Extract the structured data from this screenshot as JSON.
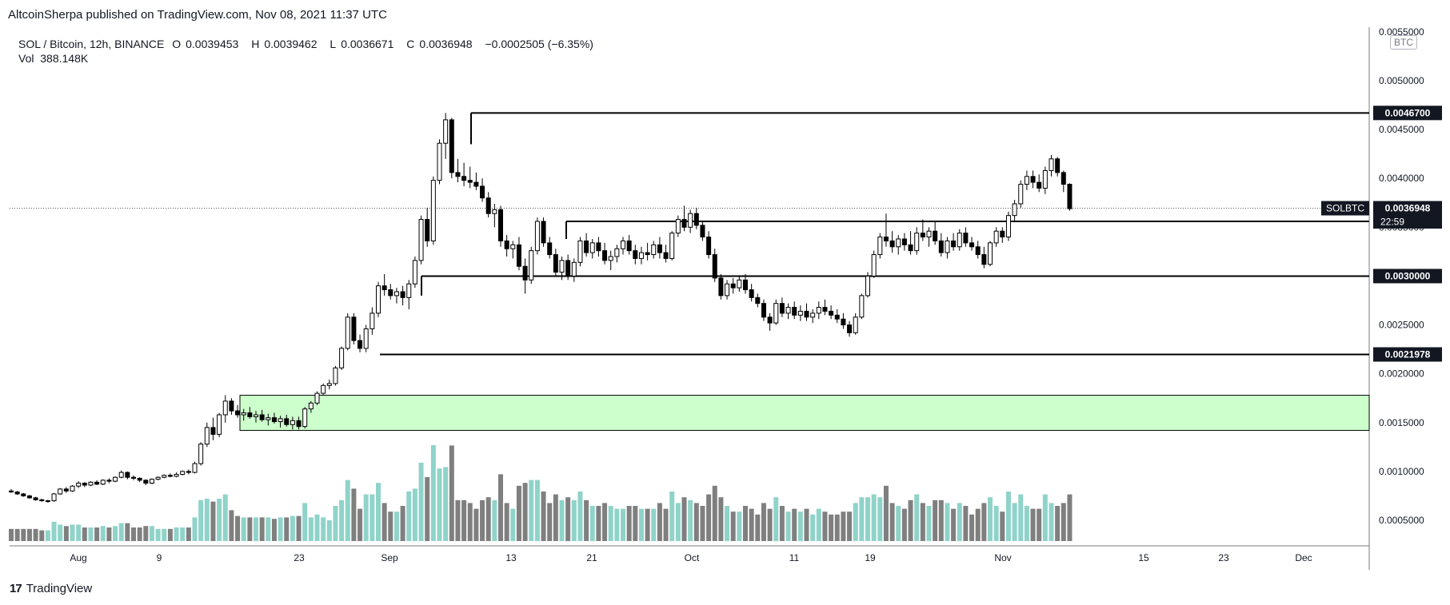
{
  "attribution": "AltcoinSherpa published on TradingView.com, Nov 08, 2021 11:37 UTC",
  "legend": {
    "symbol": "SOL / Bitcoin, 12h, BINANCE",
    "open_label": "O",
    "open": "0.0039453",
    "high_label": "H",
    "high": "0.0039462",
    "low_label": "L",
    "low": "0.0036671",
    "close_label": "C",
    "close": "0.0036948",
    "change": "−0.0002505 (−6.35%)",
    "vol_label": "Vol",
    "vol": "388.148K"
  },
  "footer": {
    "brand": "TradingView"
  },
  "colors": {
    "up": "#ffffff",
    "down": "#000000",
    "vol_up": "#8fd3c9",
    "vol_down": "#7f7f7f",
    "zone": "#ccffcc",
    "tag": "#131722"
  },
  "chart_data": {
    "type": "candlestick",
    "pair": "SOLBTC",
    "currency": "BTC",
    "y_ticks": [
      "0.0055000",
      "0.0050000",
      "0.0045000",
      "0.0040000",
      "0.0035000",
      "0.0030000",
      "0.0025000",
      "0.0020000",
      "0.0015000",
      "0.0010000",
      "0.0005000"
    ],
    "x_ticks": [
      "Aug",
      "9",
      "23",
      "Sep",
      "13",
      "21",
      "Oct",
      "11",
      "19",
      "Nov",
      "15",
      "23",
      "Dec"
    ],
    "last_price": "0.0036948",
    "countdown": "22:59",
    "levels": [
      "0.0046700",
      "0.0035598",
      "0.0030000",
      "0.0021978"
    ],
    "demand_zone": [
      0.00142,
      0.00178
    ],
    "candles_12h": [
      [
        0.0008,
        0.00082,
        0.00078,
        0.00079
      ],
      [
        0.00079,
        0.0008,
        0.00076,
        0.00077
      ],
      [
        0.00077,
        0.00078,
        0.00074,
        0.00075
      ],
      [
        0.00075,
        0.00076,
        0.00072,
        0.00073
      ],
      [
        0.00073,
        0.00074,
        0.0007,
        0.00071
      ],
      [
        0.00071,
        0.00072,
        0.00069,
        0.0007
      ],
      [
        0.0007,
        0.00071,
        0.00068,
        0.0007
      ],
      [
        0.0007,
        0.00078,
        0.00069,
        0.00077
      ],
      [
        0.00077,
        0.00083,
        0.00076,
        0.00082
      ],
      [
        0.00082,
        0.00084,
        0.00078,
        0.0008
      ],
      [
        0.0008,
        0.00086,
        0.00079,
        0.00085
      ],
      [
        0.00085,
        0.0009,
        0.00083,
        0.00088
      ],
      [
        0.00088,
        0.00089,
        0.00084,
        0.00086
      ],
      [
        0.00086,
        0.0009,
        0.00085,
        0.00089
      ],
      [
        0.00089,
        0.00091,
        0.00086,
        0.00087
      ],
      [
        0.00087,
        0.00092,
        0.00086,
        0.00091
      ],
      [
        0.00091,
        0.00093,
        0.00088,
        0.0009
      ],
      [
        0.0009,
        0.00095,
        0.00089,
        0.00094
      ],
      [
        0.00094,
        0.00101,
        0.00093,
        0.00099
      ],
      [
        0.00099,
        0.001,
        0.00092,
        0.00094
      ],
      [
        0.00094,
        0.00096,
        0.00091,
        0.00093
      ],
      [
        0.00093,
        0.00094,
        0.00089,
        0.00091
      ],
      [
        0.00091,
        0.00092,
        0.00086,
        0.00088
      ],
      [
        0.00088,
        0.00093,
        0.00087,
        0.00092
      ],
      [
        0.00092,
        0.00095,
        0.00091,
        0.00094
      ],
      [
        0.00094,
        0.00097,
        0.00093,
        0.00096
      ],
      [
        0.00096,
        0.00098,
        0.00094,
        0.00095
      ],
      [
        0.00095,
        0.00099,
        0.00094,
        0.00097
      ],
      [
        0.00097,
        0.00101,
        0.00096,
        0.001
      ],
      [
        0.001,
        0.00102,
        0.00097,
        0.00099
      ],
      [
        0.00099,
        0.0011,
        0.00098,
        0.00108
      ],
      [
        0.00108,
        0.0013,
        0.00106,
        0.00128
      ],
      [
        0.00128,
        0.0015,
        0.00125,
        0.00145
      ],
      [
        0.00145,
        0.00155,
        0.00132,
        0.00138
      ],
      [
        0.00138,
        0.0016,
        0.00135,
        0.00158
      ],
      [
        0.00158,
        0.00178,
        0.0015,
        0.00172
      ],
      [
        0.00172,
        0.00175,
        0.00158,
        0.00162
      ],
      [
        0.00162,
        0.00168,
        0.00155,
        0.00158
      ],
      [
        0.00158,
        0.00164,
        0.00152,
        0.0016
      ],
      [
        0.0016,
        0.00166,
        0.00154,
        0.00156
      ],
      [
        0.00156,
        0.00162,
        0.0015,
        0.00158
      ],
      [
        0.00158,
        0.00163,
        0.00151,
        0.00153
      ],
      [
        0.00153,
        0.00159,
        0.00147,
        0.00155
      ],
      [
        0.00155,
        0.0016,
        0.00149,
        0.00151
      ],
      [
        0.00151,
        0.00157,
        0.00145,
        0.00154
      ],
      [
        0.00154,
        0.00158,
        0.00146,
        0.00148
      ],
      [
        0.00148,
        0.00156,
        0.00143,
        0.00152
      ],
      [
        0.00152,
        0.00156,
        0.00143,
        0.00146
      ],
      [
        0.00146,
        0.00166,
        0.00144,
        0.00164
      ],
      [
        0.00164,
        0.00172,
        0.0016,
        0.0017
      ],
      [
        0.0017,
        0.00182,
        0.00168,
        0.0018
      ],
      [
        0.0018,
        0.0019,
        0.00178,
        0.00188
      ],
      [
        0.00188,
        0.00194,
        0.00184,
        0.0019
      ],
      [
        0.0019,
        0.00208,
        0.00188,
        0.00206
      ],
      [
        0.00206,
        0.00228,
        0.00204,
        0.00226
      ],
      [
        0.00226,
        0.00262,
        0.00224,
        0.00258
      ],
      [
        0.00258,
        0.00262,
        0.0023,
        0.00234
      ],
      [
        0.00234,
        0.0024,
        0.00222,
        0.00226
      ],
      [
        0.00226,
        0.0025,
        0.00222,
        0.00246
      ],
      [
        0.00246,
        0.00268,
        0.0024,
        0.00262
      ],
      [
        0.00262,
        0.00294,
        0.00258,
        0.0029
      ],
      [
        0.0029,
        0.00302,
        0.0028,
        0.00286
      ],
      [
        0.00286,
        0.00292,
        0.00276,
        0.0028
      ],
      [
        0.0028,
        0.00288,
        0.00272,
        0.00284
      ],
      [
        0.00284,
        0.0029,
        0.0027,
        0.00278
      ],
      [
        0.00278,
        0.00296,
        0.00266,
        0.00292
      ],
      [
        0.00292,
        0.0032,
        0.00288,
        0.00316
      ],
      [
        0.00316,
        0.00362,
        0.00312,
        0.00358
      ],
      [
        0.00358,
        0.0037,
        0.0033,
        0.00336
      ],
      [
        0.00336,
        0.00402,
        0.00332,
        0.00398
      ],
      [
        0.00398,
        0.0044,
        0.00394,
        0.00436
      ],
      [
        0.00436,
        0.00467,
        0.0042,
        0.0046
      ],
      [
        0.0046,
        0.00462,
        0.004,
        0.00406
      ],
      [
        0.00406,
        0.0042,
        0.00396,
        0.00402
      ],
      [
        0.00402,
        0.00416,
        0.00392,
        0.00398
      ],
      [
        0.00398,
        0.00412,
        0.0039,
        0.00396
      ],
      [
        0.00396,
        0.00406,
        0.00388,
        0.00392
      ],
      [
        0.00392,
        0.004,
        0.00376,
        0.0038
      ],
      [
        0.0038,
        0.00386,
        0.0036,
        0.00364
      ],
      [
        0.00364,
        0.00374,
        0.0035,
        0.00368
      ],
      [
        0.00368,
        0.00372,
        0.0033,
        0.00336
      ],
      [
        0.00336,
        0.00342,
        0.0032,
        0.00328
      ],
      [
        0.00328,
        0.00336,
        0.00318,
        0.00332
      ],
      [
        0.00332,
        0.0034,
        0.00306,
        0.0031
      ],
      [
        0.0031,
        0.00318,
        0.00282,
        0.00296
      ],
      [
        0.00296,
        0.0033,
        0.00292,
        0.00326
      ],
      [
        0.00326,
        0.0036,
        0.00322,
        0.00356
      ],
      [
        0.00356,
        0.0036,
        0.0033,
        0.00334
      ],
      [
        0.00334,
        0.0034,
        0.00318,
        0.00322
      ],
      [
        0.00322,
        0.00328,
        0.003,
        0.00304
      ],
      [
        0.00304,
        0.0032,
        0.00296,
        0.00316
      ],
      [
        0.00316,
        0.00322,
        0.00296,
        0.003
      ],
      [
        0.003,
        0.00318,
        0.00294,
        0.00314
      ],
      [
        0.00314,
        0.0034,
        0.0031,
        0.00336
      ],
      [
        0.00336,
        0.00344,
        0.0032,
        0.00324
      ],
      [
        0.00324,
        0.00338,
        0.00318,
        0.00334
      ],
      [
        0.00334,
        0.0034,
        0.0032,
        0.00326
      ],
      [
        0.00326,
        0.00334,
        0.00312,
        0.00316
      ],
      [
        0.00316,
        0.00326,
        0.00306,
        0.0032
      ],
      [
        0.0032,
        0.00332,
        0.00314,
        0.00328
      ],
      [
        0.00328,
        0.0034,
        0.00322,
        0.00336
      ],
      [
        0.00336,
        0.00342,
        0.00322,
        0.00326
      ],
      [
        0.00326,
        0.00332,
        0.00312,
        0.00318
      ],
      [
        0.00318,
        0.0033,
        0.00312,
        0.00324
      ],
      [
        0.00324,
        0.00334,
        0.00316,
        0.00322
      ],
      [
        0.00322,
        0.00336,
        0.00318,
        0.00332
      ],
      [
        0.00332,
        0.0034,
        0.00318,
        0.00324
      ],
      [
        0.00324,
        0.00332,
        0.00314,
        0.00318
      ],
      [
        0.00318,
        0.00346,
        0.00316,
        0.00344
      ],
      [
        0.00344,
        0.00362,
        0.0034,
        0.00358
      ],
      [
        0.00358,
        0.00372,
        0.00346,
        0.0035
      ],
      [
        0.0035,
        0.00368,
        0.00344,
        0.00364
      ],
      [
        0.00364,
        0.0037,
        0.00348,
        0.00352
      ],
      [
        0.00352,
        0.00356,
        0.00336,
        0.0034
      ],
      [
        0.0034,
        0.00346,
        0.00318,
        0.00322
      ],
      [
        0.00322,
        0.00328,
        0.00294,
        0.00298
      ],
      [
        0.00298,
        0.00302,
        0.00276,
        0.0028
      ],
      [
        0.0028,
        0.00296,
        0.00276,
        0.00292
      ],
      [
        0.00292,
        0.00298,
        0.00282,
        0.00288
      ],
      [
        0.00288,
        0.003,
        0.00284,
        0.00296
      ],
      [
        0.00296,
        0.00302,
        0.00282,
        0.00286
      ],
      [
        0.00286,
        0.00292,
        0.00274,
        0.00278
      ],
      [
        0.00278,
        0.00282,
        0.00268,
        0.00272
      ],
      [
        0.00272,
        0.00276,
        0.00254,
        0.00258
      ],
      [
        0.00258,
        0.00262,
        0.00244,
        0.00252
      ],
      [
        0.00252,
        0.00276,
        0.0025,
        0.00272
      ],
      [
        0.00272,
        0.00278,
        0.00258,
        0.00262
      ],
      [
        0.00262,
        0.00272,
        0.00256,
        0.00268
      ],
      [
        0.00268,
        0.00274,
        0.00256,
        0.0026
      ],
      [
        0.0026,
        0.0027,
        0.00254,
        0.00264
      ],
      [
        0.00264,
        0.00272,
        0.00254,
        0.00258
      ],
      [
        0.00258,
        0.00266,
        0.00252,
        0.00262
      ],
      [
        0.00262,
        0.00274,
        0.00256,
        0.00268
      ],
      [
        0.00268,
        0.00276,
        0.0026,
        0.00264
      ],
      [
        0.00264,
        0.0027,
        0.00256,
        0.0026
      ],
      [
        0.0026,
        0.00266,
        0.00252,
        0.00256
      ],
      [
        0.00256,
        0.00262,
        0.00246,
        0.0025
      ],
      [
        0.0025,
        0.00254,
        0.00238,
        0.00242
      ],
      [
        0.00242,
        0.00262,
        0.0024,
        0.00258
      ],
      [
        0.00258,
        0.00282,
        0.00256,
        0.0028
      ],
      [
        0.0028,
        0.00304,
        0.00278,
        0.003
      ],
      [
        0.003,
        0.00326,
        0.00298,
        0.00322
      ],
      [
        0.00322,
        0.00344,
        0.00318,
        0.0034
      ],
      [
        0.0034,
        0.00364,
        0.0033,
        0.00336
      ],
      [
        0.00336,
        0.00346,
        0.00324,
        0.0033
      ],
      [
        0.0033,
        0.00342,
        0.00322,
        0.00338
      ],
      [
        0.00338,
        0.00344,
        0.00326,
        0.00332
      ],
      [
        0.00332,
        0.00346,
        0.00322,
        0.00326
      ],
      [
        0.00326,
        0.0035,
        0.00322,
        0.00344
      ],
      [
        0.00344,
        0.00358,
        0.00336,
        0.0034
      ],
      [
        0.0034,
        0.0035,
        0.0033,
        0.00346
      ],
      [
        0.00346,
        0.00356,
        0.00332,
        0.00336
      ],
      [
        0.00336,
        0.00344,
        0.0032,
        0.00324
      ],
      [
        0.00324,
        0.0034,
        0.00318,
        0.00336
      ],
      [
        0.00336,
        0.00344,
        0.00326,
        0.0033
      ],
      [
        0.0033,
        0.00348,
        0.00326,
        0.00344
      ],
      [
        0.00344,
        0.0035,
        0.0033,
        0.00334
      ],
      [
        0.00334,
        0.0034,
        0.00326,
        0.0033
      ],
      [
        0.0033,
        0.00336,
        0.00318,
        0.00322
      ],
      [
        0.00322,
        0.0033,
        0.00308,
        0.00312
      ],
      [
        0.00312,
        0.00336,
        0.0031,
        0.00334
      ],
      [
        0.00334,
        0.0035,
        0.0033,
        0.00346
      ],
      [
        0.00346,
        0.0035,
        0.00334,
        0.0034
      ],
      [
        0.0034,
        0.00366,
        0.00336,
        0.00362
      ],
      [
        0.00362,
        0.00378,
        0.00356,
        0.00374
      ],
      [
        0.00374,
        0.00398,
        0.0037,
        0.00394
      ],
      [
        0.00394,
        0.00408,
        0.00388,
        0.00402
      ],
      [
        0.00402,
        0.00408,
        0.0039,
        0.00396
      ],
      [
        0.00396,
        0.00404,
        0.00386,
        0.0039
      ],
      [
        0.0039,
        0.00412,
        0.00384,
        0.00408
      ],
      [
        0.00408,
        0.00424,
        0.00402,
        0.0042
      ],
      [
        0.0042,
        0.00422,
        0.00402,
        0.00406
      ],
      [
        0.00406,
        0.00408,
        0.00386,
        0.00394
      ],
      [
        0.00394,
        0.00395,
        0.00367,
        0.00369
      ]
    ]
  }
}
